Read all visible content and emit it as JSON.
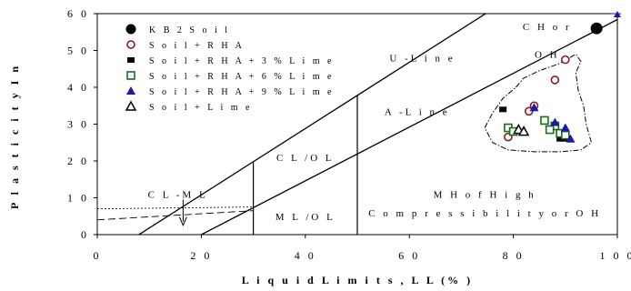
{
  "chart_data": {
    "type": "scatter",
    "title": "",
    "xlabel": "L i q u i d  L i m i t s ,  L L  (%  )",
    "ylabel": "P l a s t i c i t y  I n",
    "xlim": [
      0,
      100
    ],
    "ylim": [
      0,
      60
    ],
    "x_ticks": [
      "0",
      "2 0",
      "4 0",
      "6 0",
      "8 0",
      "1 0 0"
    ],
    "y_ticks": [
      "0",
      "1 0",
      "2 0",
      "3 0",
      "4 0",
      "5 0",
      "6 0"
    ],
    "grid": false,
    "legend_position": "top-left",
    "series": [
      {
        "name": "K B 2  S o i l",
        "marker": "filled-circle",
        "color": "#000000",
        "points": [
          [
            96,
            56
          ]
        ]
      },
      {
        "name": "S o i l + R H A",
        "marker": "open-circle",
        "color": "#8b1a1a",
        "points": [
          [
            90,
            47.5
          ],
          [
            88,
            42
          ],
          [
            84,
            35
          ],
          [
            83,
            33.5
          ],
          [
            79,
            26.5
          ]
        ]
      },
      {
        "name": "S o i l + R H A + 3 %  L i m e",
        "marker": "filled-square",
        "color": "#000000",
        "points": [
          [
            78,
            34
          ],
          [
            89,
            26
          ],
          [
            90,
            26
          ]
        ]
      },
      {
        "name": "S o i l + R H A + 6 %  L i m e",
        "marker": "open-square",
        "color": "#1a6b1a",
        "points": [
          [
            86,
            31
          ],
          [
            88,
            29.5
          ],
          [
            87,
            28.5
          ],
          [
            89,
            27.5
          ],
          [
            90,
            27
          ],
          [
            79,
            29
          ],
          [
            80,
            28
          ]
        ]
      },
      {
        "name": "S o i l + R H A + 9 %  L i m e",
        "marker": "filled-triangle",
        "color": "#1a1aa6",
        "points": [
          [
            84,
            34.5
          ],
          [
            88,
            30.5
          ],
          [
            90,
            29
          ],
          [
            91,
            26
          ]
        ]
      },
      {
        "name": "S o i l + L i m e",
        "marker": "open-triangle",
        "color": "#000000",
        "points": [
          [
            81,
            28.5
          ],
          [
            82,
            28
          ]
        ]
      }
    ],
    "reference_lines": [
      {
        "name": "U -L i n e",
        "points": [
          [
            8,
            0
          ],
          [
            80,
            64.8
          ]
        ]
      },
      {
        "name": "A -L i n e",
        "points": [
          [
            20,
            0
          ],
          [
            100,
            58.4
          ]
        ]
      }
    ],
    "region_labels": [
      {
        "text": "C H  o r",
        "x": 86.5,
        "y": 55.5
      },
      {
        "text": "O H",
        "x": 86.5,
        "y": 48
      },
      {
        "text": "U -L i n e",
        "x": 62.5,
        "y": 47
      },
      {
        "text": "A -L i n e",
        "x": 61.5,
        "y": 32.5
      },
      {
        "text": "C L /O L",
        "x": 40,
        "y": 20
      },
      {
        "text": "C L -M L",
        "x": 15.5,
        "y": 10
      },
      {
        "text": "M L /O L",
        "x": 40,
        "y": 4
      },
      {
        "text": "M H  o f  H i g h",
        "x": 74.5,
        "y": 10
      },
      {
        "text": "C o m p r e s s i b i l i t y  o r  O H",
        "x": 74.5,
        "y": 5
      }
    ]
  }
}
